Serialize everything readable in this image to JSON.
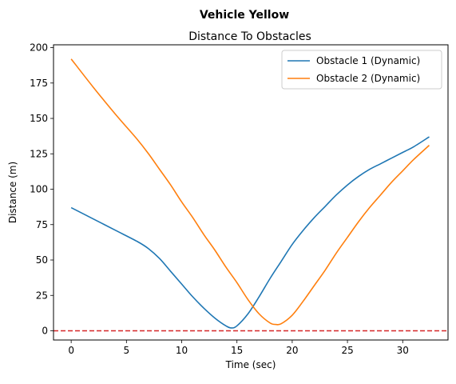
{
  "chart_data": {
    "type": "line",
    "suptitle": "Vehicle Yellow",
    "title": "Distance To Obstacles",
    "xlabel": "Time (sec)",
    "ylabel": "Distance (m)",
    "xlim": [
      -1.6,
      34.1
    ],
    "ylim": [
      -6.5,
      202
    ],
    "xticks": [
      0,
      5,
      10,
      15,
      20,
      25,
      30
    ],
    "yticks": [
      0,
      25,
      50,
      75,
      100,
      125,
      150,
      175,
      200
    ],
    "legend_position": "top-right",
    "reference_line": {
      "y": 0,
      "color": "#d62728",
      "style": "dashed"
    },
    "series": [
      {
        "name": "Obstacle 1 (Dynamic)",
        "color": "#1f77b4",
        "x": [
          0,
          2,
          4,
          6,
          7,
          8,
          9,
          10,
          11,
          12,
          13,
          14,
          14.5,
          15,
          16,
          17,
          18,
          19,
          20,
          21,
          22,
          23,
          24,
          25,
          26,
          27,
          28,
          29,
          30,
          31,
          32.4
        ],
        "y": [
          87,
          79,
          71,
          63,
          58,
          51,
          42,
          33,
          24,
          16,
          9,
          3.5,
          2,
          3.5,
          12,
          24,
          37,
          49,
          61,
          71,
          80,
          88,
          96,
          103,
          109,
          114,
          118,
          122,
          126,
          130,
          137
        ]
      },
      {
        "name": "Obstacle 2 (Dynamic)",
        "color": "#ff7f0e",
        "x": [
          0,
          2,
          4,
          6,
          7,
          8,
          9,
          10,
          11,
          12,
          13,
          14,
          15,
          16,
          17,
          18,
          18.5,
          19,
          20,
          21,
          22,
          23,
          24,
          25,
          26,
          27,
          28,
          29,
          30,
          31,
          32.4
        ],
        "y": [
          192,
          172,
          153,
          135,
          125,
          114,
          103,
          91,
          80,
          68,
          57,
          45,
          34,
          22,
          12,
          5.5,
          4.5,
          5,
          11,
          21,
          32,
          43,
          55,
          66,
          77,
          87,
          96,
          105,
          113,
          121,
          131
        ]
      }
    ]
  }
}
